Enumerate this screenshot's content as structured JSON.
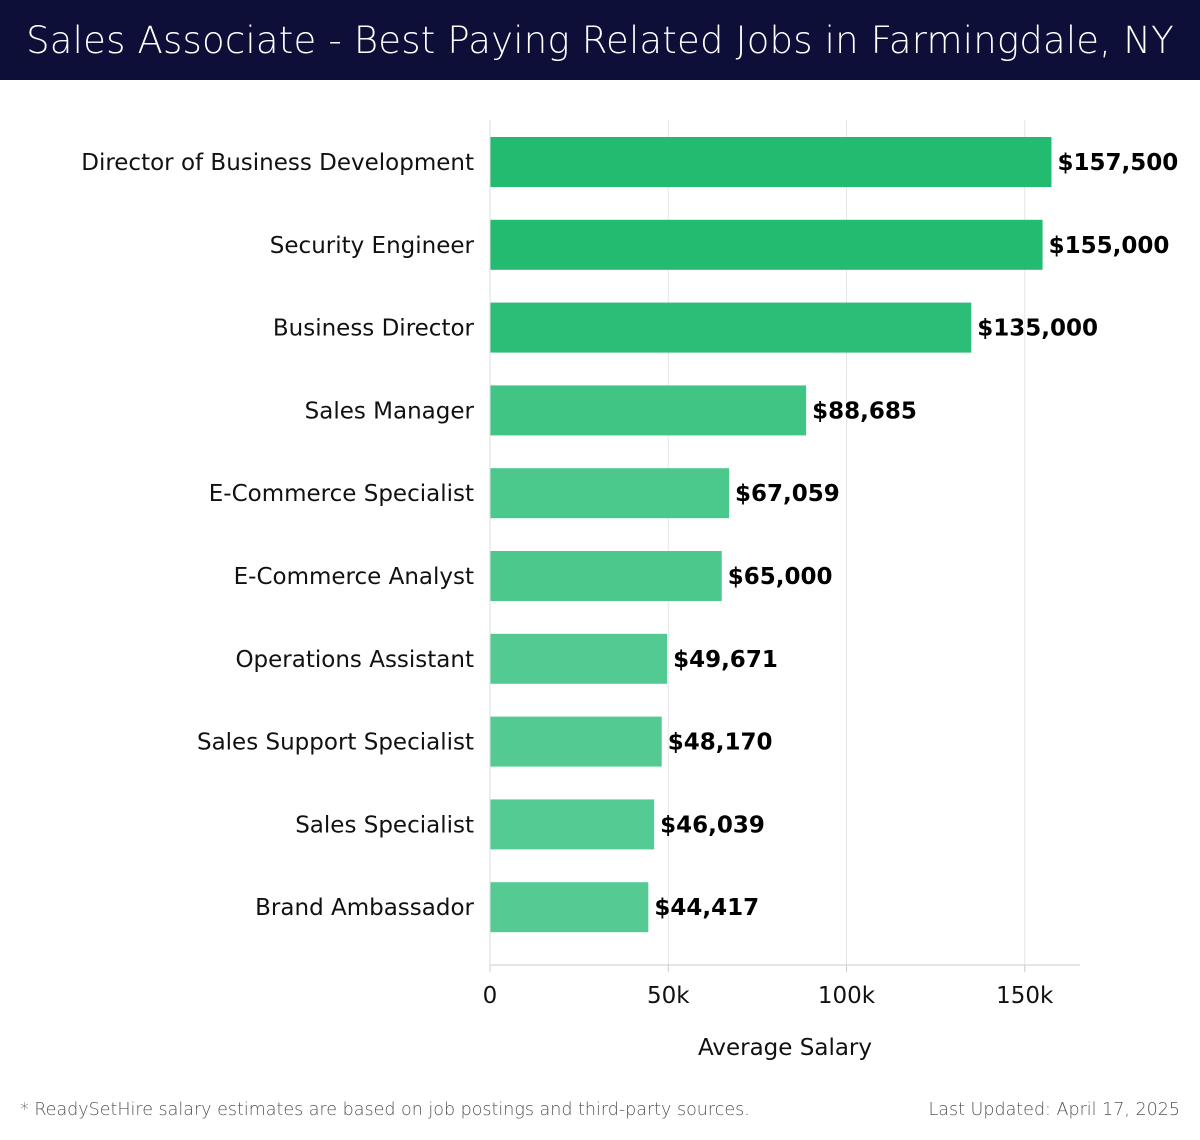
{
  "header": {
    "title": "Sales Associate - Best Paying Related Jobs in Farmingdale, NY"
  },
  "footer": {
    "note": "* ReadySetHire salary estimates are based on job postings and third-party sources.",
    "updated": "Last Updated: April 17, 2025"
  },
  "colors": {
    "header_bg": "#0d0f38",
    "bar_dark": "#22bb6f",
    "bar_light": "#55cb93"
  },
  "chart_data": {
    "type": "bar",
    "orientation": "horizontal",
    "categories": [
      "Director of Business Development",
      "Security Engineer",
      "Business Director",
      "Sales Manager",
      "E-Commerce Specialist",
      "E-Commerce Analyst",
      "Operations Assistant",
      "Sales Support Specialist",
      "Sales Specialist",
      "Brand Ambassador"
    ],
    "values": [
      157500,
      155000,
      135000,
      88685,
      67059,
      65000,
      49671,
      48170,
      46039,
      44417
    ],
    "value_labels": [
      "$157,500",
      "$155,000",
      "$135,000",
      "$88,685",
      "$67,059",
      "$65,000",
      "$49,671",
      "$48,170",
      "$46,039",
      "$44,417"
    ],
    "xlabel": "Average Salary",
    "ylabel": "",
    "xlim": [
      0,
      165500
    ],
    "xticks": [
      0,
      50000,
      100000,
      150000
    ],
    "xtick_labels": [
      "0",
      "50k",
      "100k",
      "150k"
    ],
    "grid": true
  }
}
